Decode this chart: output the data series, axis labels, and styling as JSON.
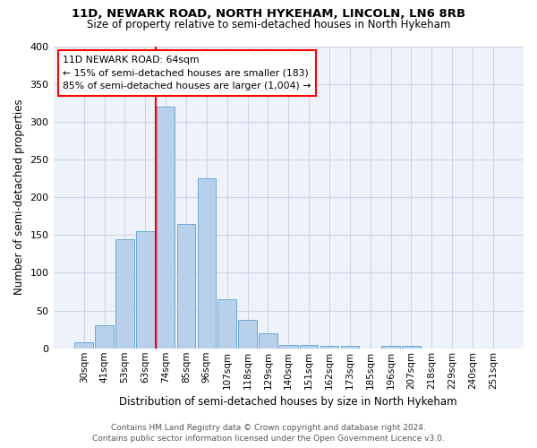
{
  "title1": "11D, NEWARK ROAD, NORTH HYKEHAM, LINCOLN, LN6 8RB",
  "title2": "Size of property relative to semi-detached houses in North Hykeham",
  "xlabel": "Distribution of semi-detached houses by size in North Hykeham",
  "ylabel": "Number of semi-detached properties",
  "categories": [
    "30sqm",
    "41sqm",
    "53sqm",
    "63sqm",
    "74sqm",
    "85sqm",
    "96sqm",
    "107sqm",
    "118sqm",
    "129sqm",
    "140sqm",
    "151sqm",
    "162sqm",
    "173sqm",
    "185sqm",
    "196sqm",
    "207sqm",
    "218sqm",
    "229sqm",
    "240sqm",
    "251sqm"
  ],
  "values": [
    8,
    30,
    145,
    155,
    320,
    165,
    225,
    65,
    38,
    20,
    5,
    5,
    3,
    3,
    0,
    3,
    3,
    0,
    0,
    0,
    0
  ],
  "bar_color": "#b8d0ea",
  "bar_edge_color": "#6aaad4",
  "highlight_bar_index": 3,
  "vline_color": "red",
  "annotation_title": "11D NEWARK ROAD: 64sqm",
  "annotation_line1": "← 15% of semi-detached houses are smaller (183)",
  "annotation_line2": "85% of semi-detached houses are larger (1,004) →",
  "grid_color": "#ccd5e8",
  "background_color": "#eef2fa",
  "footer1": "Contains HM Land Registry data © Crown copyright and database right 2024.",
  "footer2": "Contains public sector information licensed under the Open Government Licence v3.0.",
  "ylim": [
    0,
    400
  ],
  "yticks": [
    0,
    50,
    100,
    150,
    200,
    250,
    300,
    350,
    400
  ]
}
